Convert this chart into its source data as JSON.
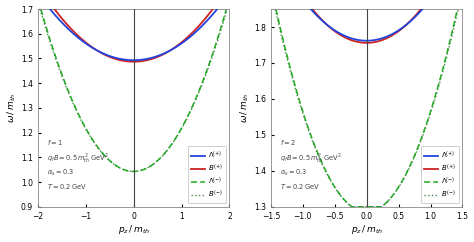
{
  "plot1": {
    "f": "1",
    "xlim": [
      -2,
      2
    ],
    "ylim": [
      0.9,
      1.7
    ],
    "xticks": [
      -2,
      -1,
      0,
      1,
      2
    ],
    "yticks": [
      0.9,
      1.0,
      1.1,
      1.2,
      1.3,
      1.4,
      1.5,
      1.6,
      1.7
    ],
    "xlabel": "$p_z \\, / \\, m_{th}$",
    "ylabel": "$\\omega \\, / \\, m_{th}$",
    "ann_lines": [
      "$f=1$",
      "$q_f B=0.5\\,m_{th}^2\\;\\mathrm{GeV}^2$",
      "$\\alpha_s=0.3$",
      "$T=0.2\\;\\mathrm{GeV}$"
    ],
    "L_plus_min": 1.493,
    "B_plus_min": 1.487,
    "L_plus_curv": 0.068,
    "B_plus_curv": 0.078,
    "L_minus_min": 1.043,
    "B_minus_min": 1.043,
    "L_minus_curv": 0.175,
    "B_minus_curv": 0.172
  },
  "plot2": {
    "f": "2",
    "xlim": [
      -1.5,
      1.5
    ],
    "ylim": [
      1.3,
      1.85
    ],
    "xticks": [
      -1.5,
      -1.0,
      -0.5,
      0.0,
      0.5,
      1.0,
      1.5
    ],
    "yticks": [
      1.3,
      1.4,
      1.5,
      1.6,
      1.7,
      1.8
    ],
    "xlabel": "$p_z \\, / \\, m_{th}$",
    "ylabel": "$\\omega \\, / \\, m_{th}$",
    "ann_lines": [
      "$f=2$",
      "$q_f B=0.5\\,m_{th}^2\\;\\mathrm{GeV}^2$",
      "$\\alpha_s=0.3$",
      "$T=0.2\\;\\mathrm{GeV}$"
    ],
    "L_plus_min": 1.762,
    "B_plus_min": 1.756,
    "L_plus_curv": 0.115,
    "B_plus_curv": 0.13,
    "L_minus_min": 1.285,
    "B_minus_min": 1.285,
    "L_minus_curv": 0.28,
    "B_minus_curv": 0.275
  },
  "colors": {
    "L_plus": "#2244dd",
    "B_plus": "#cc2222",
    "L_minus": "#22aa22",
    "B_minus": "#558855"
  },
  "legend_labels": [
    "$\\Lambda^{(+)}$",
    "$B^{(+)}$",
    "$\\Lambda^{(-)}$",
    "$B^{(-)}$"
  ],
  "background": "#ffffff"
}
